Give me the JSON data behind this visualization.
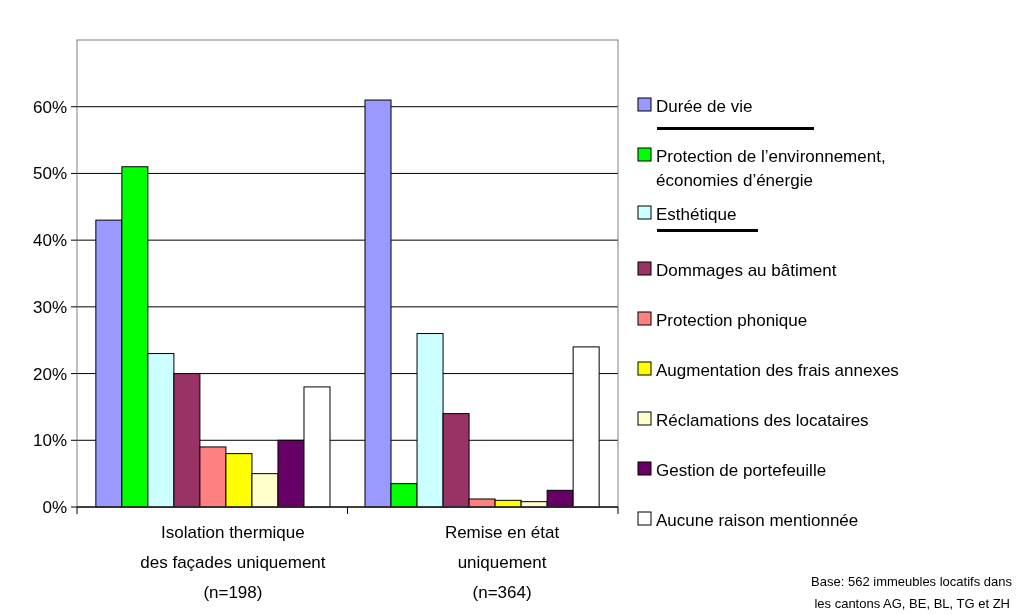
{
  "chart_data": {
    "type": "bar",
    "categories": [
      "Isolation thermique\ndes façades uniquement\n(n=198)",
      "Remise en état\nuniquement\n(n=364)"
    ],
    "series": [
      {
        "name": "Durée de vie",
        "color": "#9999ff",
        "values": [
          43,
          61
        ]
      },
      {
        "name": "Protection de l’environnement,\néconomies d’énergie",
        "color": "#00ff00",
        "values": [
          51,
          3.5
        ]
      },
      {
        "name": "Esthétique",
        "color": "#ccffff",
        "values": [
          23,
          26
        ]
      },
      {
        "name": "Dommages au bâtiment",
        "color": "#993366",
        "values": [
          20,
          14
        ]
      },
      {
        "name": "Protection phonique",
        "color": "#ff8080",
        "values": [
          9,
          1.2
        ]
      },
      {
        "name": "Augmentation des frais annexes",
        "color": "#ffff00",
        "values": [
          8,
          1
        ]
      },
      {
        "name": "Réclamations des locataires",
        "color": "#ffffcc",
        "values": [
          5,
          0.8
        ]
      },
      {
        "name": "Gestion de portefeuille",
        "color": "#660066",
        "values": [
          10,
          2.5
        ]
      },
      {
        "name": "Aucune raison mentionnée",
        "color": "#ffffff",
        "values": [
          18,
          24
        ]
      }
    ],
    "ylim": [
      0,
      70
    ],
    "yticks": [
      {
        "value": 0,
        "label": "0%"
      },
      {
        "value": 10,
        "label": "10%"
      },
      {
        "value": 20,
        "label": "20%"
      },
      {
        "value": 30,
        "label": "30%"
      },
      {
        "value": 40,
        "label": "40%"
      },
      {
        "value": 50,
        "label": "50%"
      },
      {
        "value": 60,
        "label": "60%"
      }
    ],
    "grid": "y",
    "legend": "right",
    "annotations": [
      "Base: 562 immeubles locatifs dans\nles cantons AG, BE, BL, TG et ZH"
    ]
  }
}
